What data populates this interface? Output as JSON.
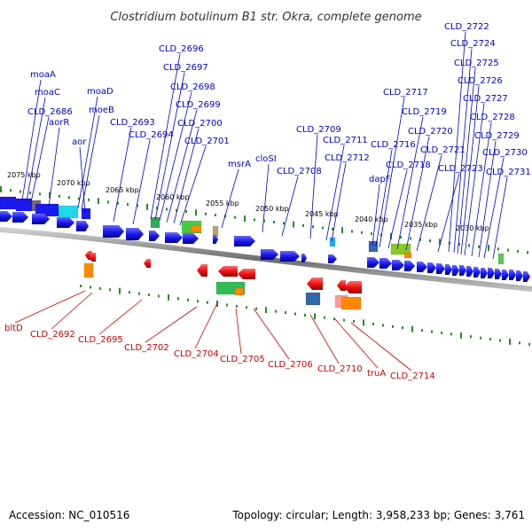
{
  "header": {
    "title": "Clostridium botulinum B1 str. Okra, complete genome"
  },
  "footer": {
    "accession": "Accession: NC_010516",
    "summary": "Topology: circular; Length: 3,958,233 bp; Genes: 3,761"
  },
  "colors": {
    "forward": "#1a1aee",
    "reverse": "#ee1111",
    "forward_label": "#0000cc",
    "reverse_label": "#cc0000",
    "backbone": "#888888",
    "tick": "#2a8a2a"
  },
  "scale": {
    "unit": "kbp",
    "labels": [
      "2075 kbp",
      "2070 kbp",
      "2065 kbp",
      "2060 kbp",
      "2055 kbp",
      "2050 kbp",
      "2045 kbp",
      "2040 kbp",
      "2035 kbp",
      "2030 kbp"
    ]
  },
  "forward_genes": [
    "moaA",
    "moaC",
    "CLD_2686",
    "aorR",
    "moaD",
    "moeB",
    "aor",
    "CLD_2693",
    "CLD_2694",
    "CLD_2696",
    "CLD_2697",
    "CLD_2698",
    "CLD_2699",
    "CLD_2700",
    "CLD_2701",
    "msrA",
    "cloSI",
    "CLD_2708",
    "CLD_2709",
    "CLD_2711",
    "CLD_2712",
    "dapF",
    "CLD_2716",
    "CLD_2717",
    "CLD_2718",
    "CLD_2719",
    "CLD_2720",
    "CLD_2721",
    "CLD_2722",
    "CLD_2723",
    "CLD_2724",
    "CLD_2725",
    "CLD_2726",
    "CLD_2727",
    "CLD_2728",
    "CLD_2729",
    "CLD_2730",
    "CLD_2731"
  ],
  "reverse_genes": [
    "bltD",
    "CLD_2692",
    "CLD_2695",
    "CLD_2702",
    "CLD_2704",
    "CLD_2705",
    "CLD_2706",
    "CLD_2710",
    "truA",
    "CLD_2714"
  ]
}
